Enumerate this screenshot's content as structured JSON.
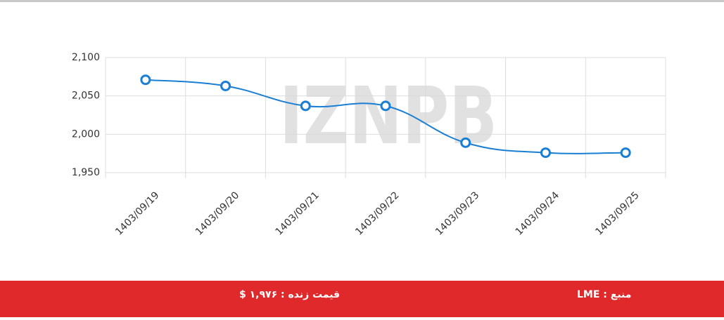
{
  "chart_data": {
    "type": "line",
    "categories": [
      "1403/09/19",
      "1403/09/20",
      "1403/09/21",
      "1403/09/22",
      "1403/09/23",
      "1403/09/24",
      "1403/09/25"
    ],
    "values": [
      2071,
      2063,
      2037,
      2037,
      1989,
      1976,
      1976
    ],
    "color": "#1a7fd4",
    "ylim": [
      1950,
      2100
    ],
    "yticks": [
      {
        "value": 1950,
        "label": "1,950"
      },
      {
        "value": 2000,
        "label": "2,000"
      },
      {
        "value": 2050,
        "label": "2,050"
      },
      {
        "value": 2100,
        "label": "2,100"
      }
    ],
    "grid": true,
    "watermark": "IZNPB"
  },
  "footer": {
    "source": "منبع : LME",
    "live_price": "قیمت زنده : ۱,۹۷۶ $"
  }
}
